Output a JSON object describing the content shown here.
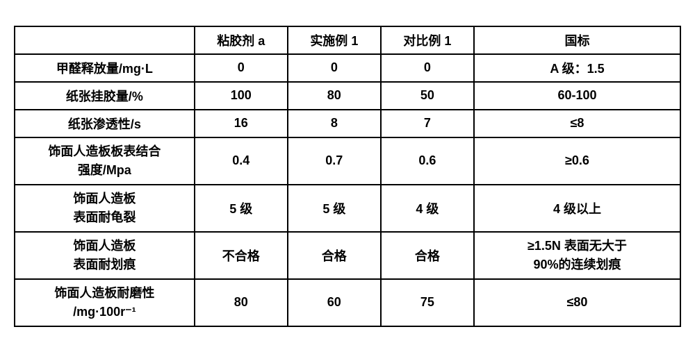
{
  "fonts": {
    "header_size_pt": 18,
    "body_size_pt": 18,
    "font_family": "SimSun",
    "font_weight": "bold"
  },
  "colors": {
    "background": "#ffffff",
    "border": "#000000",
    "text": "#000000"
  },
  "table": {
    "type": "table",
    "columns": [
      "",
      "粘胶剂 a",
      "实施例 1",
      "对比例 1",
      "国标"
    ],
    "column_widths_pct": [
      27,
      14,
      14,
      14,
      31
    ],
    "rows": [
      {
        "label": "甲醛释放量/mg·L",
        "values": [
          "0",
          "0",
          "0",
          "A 级：1.5"
        ]
      },
      {
        "label": "纸张挂胶量/%",
        "values": [
          "100",
          "80",
          "50",
          "60-100"
        ]
      },
      {
        "label": "纸张渗透性/s",
        "values": [
          "16",
          "8",
          "7",
          "≤8"
        ]
      },
      {
        "label": "饰面人造板板表结合\n强度/Mpa",
        "values": [
          "0.4",
          "0.7",
          "0.6",
          "≥0.6"
        ]
      },
      {
        "label": "饰面人造板\n表面耐龟裂",
        "values": [
          "5 级",
          "5 级",
          "4 级",
          "4 级以上"
        ]
      },
      {
        "label": "饰面人造板\n表面耐划痕",
        "values": [
          "不合格",
          "合格",
          "合格",
          "≥1.5N 表面无大于\n90%的连续划痕"
        ]
      },
      {
        "label": "饰面人造板耐磨性\n/mg·100r⁻¹",
        "values": [
          "80",
          "60",
          "75",
          "≤80"
        ]
      }
    ]
  }
}
